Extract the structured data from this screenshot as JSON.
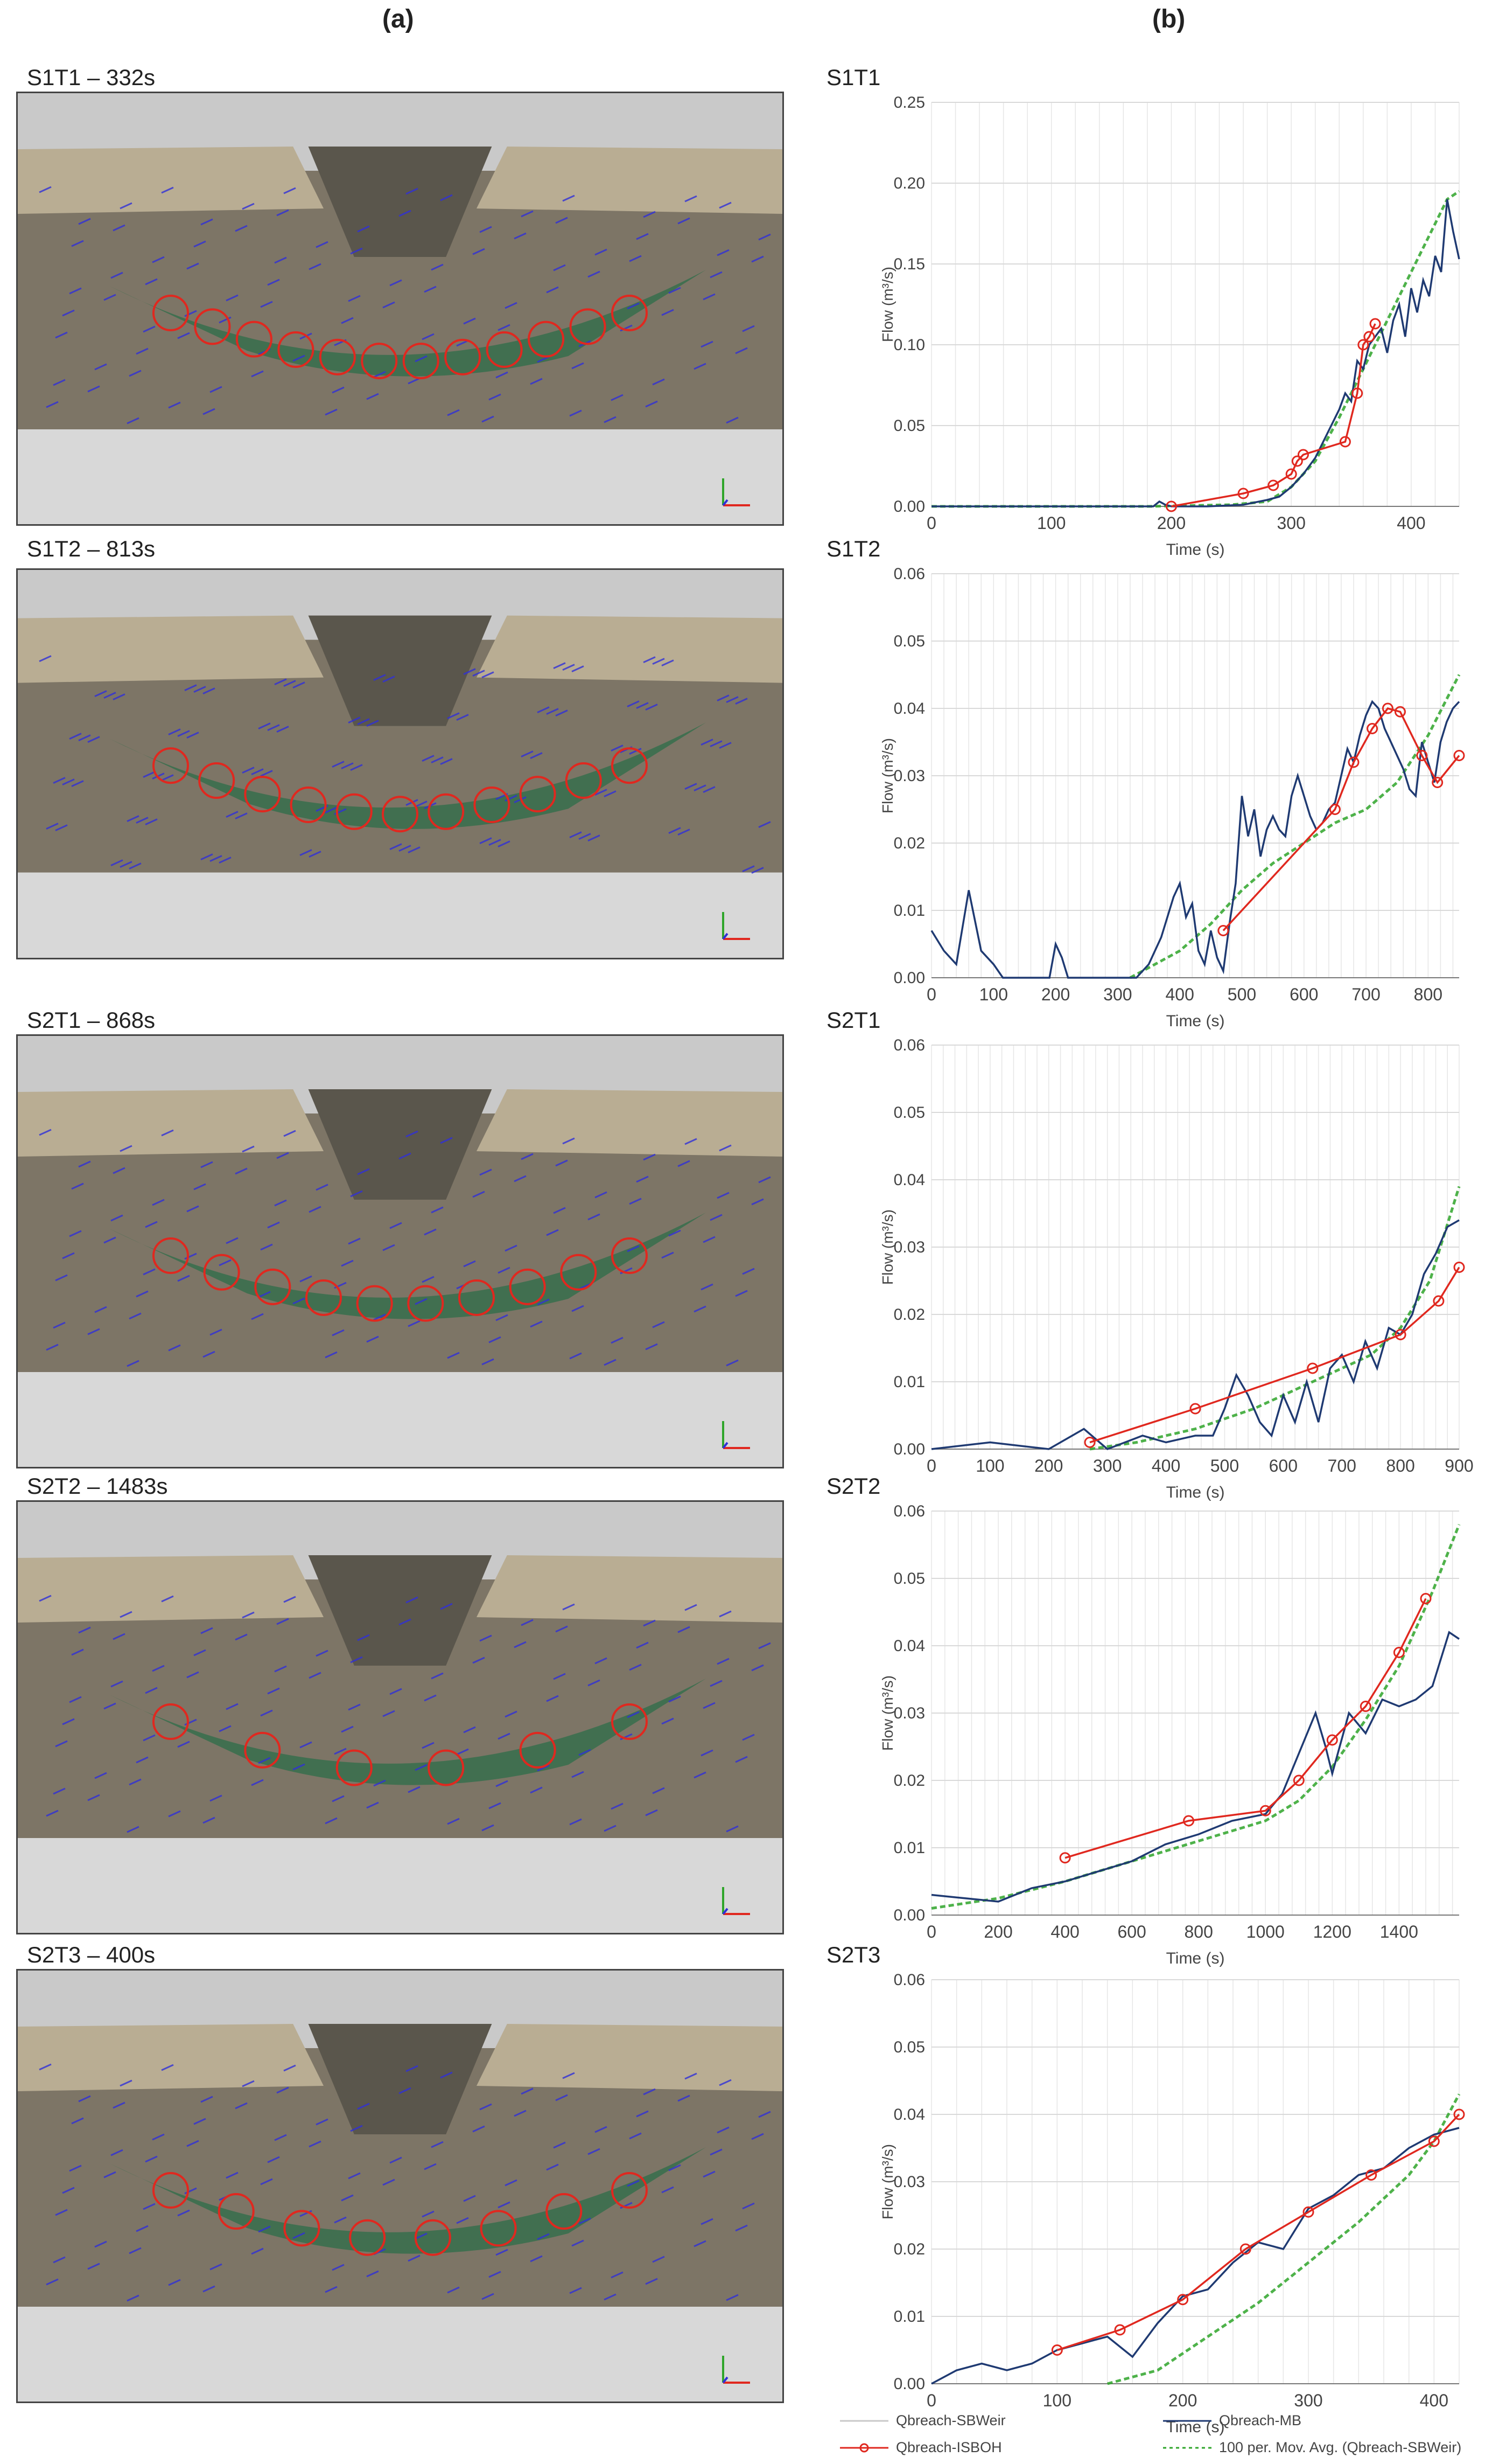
{
  "headers": {
    "a": "(a)",
    "b": "(b)"
  },
  "colors": {
    "sbweir": "#c8c8c8",
    "mb": "#1f3a72",
    "isboh": "#e0281f",
    "movavg": "#2fa52a",
    "marker": "#e0281f",
    "arrow": "#3030d8",
    "mask": "#2e6e4a"
  },
  "panels": [
    {
      "photo_title": "S1T1 – 332s",
      "chart_title": "S1T1",
      "markers": 12
    },
    {
      "photo_title": "S1T2 – 813s",
      "chart_title": "S1T2",
      "markers": 11
    },
    {
      "photo_title": "S2T1 – 868s",
      "chart_title": "S2T1",
      "markers": 10
    },
    {
      "photo_title": "S2T2 – 1483s",
      "chart_title": "S2T2",
      "markers": 6
    },
    {
      "photo_title": "S2T3 – 400s",
      "chart_title": "S2T3",
      "markers": 8
    }
  ],
  "legend": {
    "sbweir": "Qbreach-SBWeir",
    "mb": "Qbreach-MB",
    "isboh": "Qbreach-ISBOH",
    "movavg": "100 per. Mov. Avg. (Qbreach-SBWeir)"
  },
  "chart_data": [
    {
      "type": "line",
      "title": "S1T1",
      "xlabel": "Time (s)",
      "ylabel": "Flow (m³/s)",
      "xlim": [
        0,
        440
      ],
      "ylim": [
        0,
        0.25
      ],
      "xticks": [
        0,
        100,
        200,
        300,
        400
      ],
      "yticks": [
        0,
        0.05,
        0.1,
        0.15,
        0.2,
        0.25
      ],
      "ydec": 2,
      "grid": true,
      "series": [
        {
          "key": "isboh",
          "x": [
            200,
            260,
            285,
            300,
            305,
            310,
            345,
            355,
            360,
            365,
            370
          ],
          "y": [
            0.0,
            0.008,
            0.013,
            0.02,
            0.028,
            0.032,
            0.04,
            0.07,
            0.1,
            0.105,
            0.113
          ]
        },
        {
          "key": "mb",
          "x": [
            0,
            185,
            190,
            195,
            200,
            230,
            260,
            280,
            290,
            300,
            310,
            320,
            330,
            340,
            345,
            350,
            355,
            360,
            365,
            370,
            375,
            380,
            385,
            390,
            395,
            400,
            405,
            410,
            415,
            420,
            425,
            430,
            435,
            440
          ],
          "y": [
            0,
            0,
            0.003,
            0.001,
            0,
            0,
            0.001,
            0.004,
            0.006,
            0.012,
            0.02,
            0.03,
            0.045,
            0.06,
            0.07,
            0.065,
            0.09,
            0.085,
            0.1,
            0.105,
            0.11,
            0.095,
            0.115,
            0.125,
            0.105,
            0.135,
            0.12,
            0.14,
            0.13,
            0.155,
            0.145,
            0.19,
            0.17,
            0.153
          ]
        },
        {
          "key": "movavg",
          "x": [
            0,
            180,
            250,
            280,
            300,
            320,
            340,
            360,
            380,
            400,
            420,
            430,
            440
          ],
          "y": [
            0,
            0,
            0.001,
            0.003,
            0.012,
            0.028,
            0.055,
            0.085,
            0.115,
            0.145,
            0.175,
            0.19,
            0.195
          ]
        }
      ]
    },
    {
      "type": "line",
      "title": "S1T2",
      "xlabel": "Time (s)",
      "ylabel": "Flow (m³/s)",
      "xlim": [
        0,
        850
      ],
      "ylim": [
        0,
        0.06
      ],
      "xticks": [
        0,
        100,
        200,
        300,
        400,
        500,
        600,
        700,
        800
      ],
      "yticks": [
        0,
        0.01,
        0.02,
        0.03,
        0.04,
        0.05,
        0.06
      ],
      "ydec": 2,
      "grid": true,
      "series": [
        {
          "key": "isboh",
          "x": [
            470,
            650,
            680,
            710,
            735,
            755,
            790,
            815,
            850
          ],
          "y": [
            0.007,
            0.025,
            0.032,
            0.037,
            0.04,
            0.0395,
            0.033,
            0.029,
            0.033
          ]
        },
        {
          "key": "mb",
          "x": [
            0,
            20,
            40,
            60,
            80,
            100,
            115,
            190,
            200,
            210,
            220,
            330,
            350,
            370,
            390,
            400,
            410,
            420,
            430,
            440,
            450,
            460,
            470,
            480,
            490,
            500,
            510,
            520,
            530,
            540,
            550,
            560,
            570,
            580,
            590,
            600,
            610,
            620,
            630,
            640,
            650,
            660,
            670,
            680,
            690,
            700,
            710,
            720,
            730,
            740,
            750,
            760,
            770,
            780,
            790,
            800,
            810,
            820,
            830,
            840,
            850
          ],
          "y": [
            0.007,
            0.004,
            0.002,
            0.013,
            0.004,
            0.002,
            0.0,
            0.0,
            0.005,
            0.003,
            0.0,
            0.0,
            0.002,
            0.006,
            0.012,
            0.014,
            0.009,
            0.011,
            0.004,
            0.002,
            0.007,
            0.003,
            0.001,
            0.008,
            0.014,
            0.027,
            0.021,
            0.025,
            0.018,
            0.022,
            0.024,
            0.022,
            0.021,
            0.027,
            0.03,
            0.027,
            0.024,
            0.022,
            0.023,
            0.025,
            0.026,
            0.03,
            0.034,
            0.032,
            0.036,
            0.039,
            0.041,
            0.04,
            0.037,
            0.035,
            0.033,
            0.031,
            0.028,
            0.027,
            0.035,
            0.032,
            0.029,
            0.035,
            0.038,
            0.04,
            0.041
          ]
        },
        {
          "key": "movavg",
          "x": [
            320,
            350,
            400,
            450,
            500,
            550,
            600,
            650,
            700,
            750,
            800,
            850
          ],
          "y": [
            0.0,
            0.0015,
            0.004,
            0.008,
            0.013,
            0.017,
            0.02,
            0.023,
            0.025,
            0.029,
            0.036,
            0.045
          ]
        }
      ]
    },
    {
      "type": "line",
      "title": "S2T1",
      "xlabel": "Time (s)",
      "ylabel": "Flow (m³/s)",
      "xlim": [
        0,
        900
      ],
      "ylim": [
        0,
        0.06
      ],
      "xticks": [
        0,
        100,
        200,
        300,
        400,
        500,
        600,
        700,
        800,
        900
      ],
      "yticks": [
        0,
        0.01,
        0.02,
        0.03,
        0.04,
        0.05,
        0.06
      ],
      "ydec": 2,
      "grid": true,
      "series": [
        {
          "key": "isboh",
          "x": [
            270,
            450,
            650,
            800,
            865,
            900
          ],
          "y": [
            0.001,
            0.006,
            0.012,
            0.017,
            0.022,
            0.027
          ]
        },
        {
          "key": "mb",
          "x": [
            0,
            100,
            200,
            260,
            300,
            360,
            400,
            450,
            480,
            500,
            520,
            540,
            560,
            580,
            600,
            620,
            640,
            660,
            680,
            700,
            720,
            740,
            760,
            780,
            800,
            820,
            840,
            860,
            880,
            900
          ],
          "y": [
            0,
            0.001,
            0,
            0.003,
            0,
            0.002,
            0.001,
            0.002,
            0.002,
            0.006,
            0.011,
            0.008,
            0.004,
            0.002,
            0.008,
            0.004,
            0.01,
            0.004,
            0.012,
            0.014,
            0.01,
            0.016,
            0.012,
            0.018,
            0.017,
            0.02,
            0.026,
            0.029,
            0.033,
            0.034
          ]
        },
        {
          "key": "movavg",
          "x": [
            270,
            350,
            450,
            550,
            650,
            750,
            800,
            850,
            900
          ],
          "y": [
            0.0,
            0.001,
            0.003,
            0.006,
            0.01,
            0.014,
            0.018,
            0.025,
            0.039
          ]
        }
      ]
    },
    {
      "type": "line",
      "title": "S2T2",
      "xlabel": "Time (s)",
      "ylabel": "Flow (m³/s)",
      "xlim": [
        0,
        1580
      ],
      "ylim": [
        0,
        0.06
      ],
      "xticks": [
        0,
        200,
        400,
        600,
        800,
        1000,
        1200,
        1400
      ],
      "yticks": [
        0,
        0.01,
        0.02,
        0.03,
        0.04,
        0.05,
        0.06
      ],
      "ydec": 2,
      "grid": true,
      "series": [
        {
          "key": "isboh",
          "x": [
            400,
            770,
            1000,
            1100,
            1200,
            1300,
            1400,
            1480
          ],
          "y": [
            0.0085,
            0.014,
            0.0155,
            0.02,
            0.026,
            0.031,
            0.039,
            0.047
          ]
        },
        {
          "key": "mb",
          "x": [
            0,
            100,
            200,
            300,
            400,
            500,
            600,
            700,
            800,
            900,
            1000,
            1050,
            1100,
            1150,
            1180,
            1200,
            1250,
            1300,
            1350,
            1400,
            1450,
            1500,
            1550,
            1580
          ],
          "y": [
            0.003,
            0.0025,
            0.002,
            0.004,
            0.005,
            0.0065,
            0.008,
            0.0105,
            0.012,
            0.014,
            0.015,
            0.018,
            0.024,
            0.03,
            0.025,
            0.021,
            0.03,
            0.027,
            0.032,
            0.031,
            0.032,
            0.034,
            0.042,
            0.041
          ]
        },
        {
          "key": "movavg",
          "x": [
            0,
            200,
            400,
            600,
            800,
            1000,
            1100,
            1200,
            1300,
            1400,
            1500,
            1580
          ],
          "y": [
            0.001,
            0.0025,
            0.005,
            0.008,
            0.011,
            0.014,
            0.017,
            0.022,
            0.029,
            0.037,
            0.048,
            0.058
          ]
        }
      ]
    },
    {
      "type": "line",
      "title": "S2T3",
      "xlabel": "Time (s)",
      "ylabel": "Flow (m³/s)",
      "xlim": [
        0,
        420
      ],
      "ylim": [
        0,
        0.06
      ],
      "xticks": [
        0,
        100,
        200,
        300,
        400
      ],
      "yticks": [
        0,
        0.01,
        0.02,
        0.03,
        0.04,
        0.05,
        0.06
      ],
      "ydec": 2,
      "grid": true,
      "series": [
        {
          "key": "isboh",
          "x": [
            100,
            150,
            200,
            250,
            300,
            350,
            400,
            420
          ],
          "y": [
            0.005,
            0.008,
            0.0125,
            0.02,
            0.0255,
            0.031,
            0.036,
            0.04
          ]
        },
        {
          "key": "mb",
          "x": [
            0,
            20,
            40,
            60,
            80,
            100,
            120,
            140,
            160,
            180,
            200,
            220,
            240,
            260,
            280,
            300,
            320,
            340,
            360,
            380,
            400,
            420
          ],
          "y": [
            0.0,
            0.002,
            0.003,
            0.002,
            0.003,
            0.005,
            0.006,
            0.007,
            0.004,
            0.009,
            0.013,
            0.014,
            0.018,
            0.021,
            0.02,
            0.026,
            0.028,
            0.031,
            0.032,
            0.035,
            0.037,
            0.038
          ]
        },
        {
          "key": "movavg",
          "x": [
            140,
            180,
            220,
            260,
            300,
            340,
            380,
            400,
            420
          ],
          "y": [
            0.0,
            0.002,
            0.007,
            0.012,
            0.018,
            0.024,
            0.031,
            0.036,
            0.043
          ]
        }
      ]
    }
  ]
}
